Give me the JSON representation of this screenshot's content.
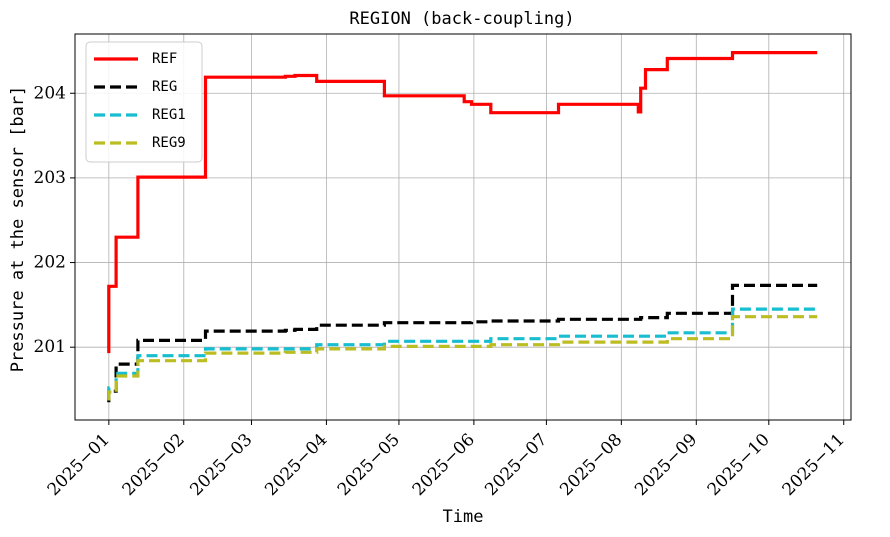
{
  "chart_data": {
    "type": "line",
    "title": "REGION (back-coupling)",
    "xlabel": "Time",
    "ylabel": "Pressure at the sensor [bar]",
    "x_ticks": [
      "2025-01",
      "2025-02",
      "2025-03",
      "2025-04",
      "2025-05",
      "2025-06",
      "2025-07",
      "2025-08",
      "2025-09",
      "2025-10",
      "2025-11"
    ],
    "y_ticks": [
      "201",
      "202",
      "203",
      "204"
    ],
    "xlim": [
      "2024-12-18",
      "2025-11-04"
    ],
    "ylim": [
      200.14,
      204.7
    ],
    "grid": true,
    "legend_position": "top-left",
    "series": [
      {
        "name": "REF",
        "color": "#ff0000",
        "style": "solid",
        "points": [
          [
            "2025-01-01",
            200.93
          ],
          [
            "2025-01-01",
            201.72
          ],
          [
            "2025-01-04",
            201.72
          ],
          [
            "2025-01-04",
            202.3
          ],
          [
            "2025-01-13",
            202.3
          ],
          [
            "2025-01-13",
            203.01
          ],
          [
            "2025-02-10",
            203.01
          ],
          [
            "2025-02-10",
            204.19
          ],
          [
            "2025-03-15",
            204.19
          ],
          [
            "2025-03-15",
            204.2
          ],
          [
            "2025-03-19",
            204.2
          ],
          [
            "2025-03-19",
            204.21
          ],
          [
            "2025-03-28",
            204.21
          ],
          [
            "2025-03-28",
            204.14
          ],
          [
            "2025-04-25",
            204.14
          ],
          [
            "2025-04-25",
            203.97
          ],
          [
            "2025-05-28",
            203.97
          ],
          [
            "2025-05-28",
            203.9
          ],
          [
            "2025-05-31",
            203.9
          ],
          [
            "2025-05-31",
            203.87
          ],
          [
            "2025-06-08",
            203.87
          ],
          [
            "2025-06-08",
            203.77
          ],
          [
            "2025-07-06",
            203.77
          ],
          [
            "2025-07-06",
            203.87
          ],
          [
            "2025-08-08",
            203.87
          ],
          [
            "2025-08-08",
            203.78
          ],
          [
            "2025-08-09",
            203.78
          ],
          [
            "2025-08-09",
            204.06
          ],
          [
            "2025-08-11",
            204.06
          ],
          [
            "2025-08-11",
            204.28
          ],
          [
            "2025-08-20",
            204.28
          ],
          [
            "2025-08-20",
            204.41
          ],
          [
            "2025-09-16",
            204.41
          ],
          [
            "2025-09-16",
            204.48
          ],
          [
            "2025-10-21",
            204.48
          ]
        ]
      },
      {
        "name": "REG",
        "color": "#000000",
        "style": "dashed",
        "points": [
          [
            "2025-01-01",
            200.35
          ],
          [
            "2025-01-01",
            200.48
          ],
          [
            "2025-01-04",
            200.48
          ],
          [
            "2025-01-04",
            200.8
          ],
          [
            "2025-01-13",
            200.8
          ],
          [
            "2025-01-13",
            201.08
          ],
          [
            "2025-02-10",
            201.08
          ],
          [
            "2025-02-10",
            201.19
          ],
          [
            "2025-03-15",
            201.19
          ],
          [
            "2025-03-15",
            201.2
          ],
          [
            "2025-03-19",
            201.2
          ],
          [
            "2025-03-19",
            201.21
          ],
          [
            "2025-03-28",
            201.21
          ],
          [
            "2025-03-28",
            201.26
          ],
          [
            "2025-04-25",
            201.26
          ],
          [
            "2025-04-25",
            201.29
          ],
          [
            "2025-05-31",
            201.29
          ],
          [
            "2025-05-31",
            201.3
          ],
          [
            "2025-06-08",
            201.3
          ],
          [
            "2025-06-08",
            201.31
          ],
          [
            "2025-07-06",
            201.31
          ],
          [
            "2025-07-06",
            201.33
          ],
          [
            "2025-08-09",
            201.33
          ],
          [
            "2025-08-09",
            201.35
          ],
          [
            "2025-08-20",
            201.35
          ],
          [
            "2025-08-20",
            201.4
          ],
          [
            "2025-09-16",
            201.4
          ],
          [
            "2025-09-16",
            201.73
          ],
          [
            "2025-10-21",
            201.73
          ]
        ]
      },
      {
        "name": "REG1",
        "color": "#17becf",
        "style": "dashed",
        "points": [
          [
            "2025-01-01",
            200.4
          ],
          [
            "2025-01-01",
            200.52
          ],
          [
            "2025-01-04",
            200.52
          ],
          [
            "2025-01-04",
            200.69
          ],
          [
            "2025-01-13",
            200.69
          ],
          [
            "2025-01-13",
            200.9
          ],
          [
            "2025-02-10",
            200.9
          ],
          [
            "2025-02-10",
            200.98
          ],
          [
            "2025-03-28",
            200.98
          ],
          [
            "2025-03-28",
            201.03
          ],
          [
            "2025-04-25",
            201.03
          ],
          [
            "2025-04-25",
            201.07
          ],
          [
            "2025-06-08",
            201.07
          ],
          [
            "2025-06-08",
            201.1
          ],
          [
            "2025-07-06",
            201.1
          ],
          [
            "2025-07-06",
            201.13
          ],
          [
            "2025-08-20",
            201.13
          ],
          [
            "2025-08-20",
            201.17
          ],
          [
            "2025-09-16",
            201.17
          ],
          [
            "2025-09-16",
            201.45
          ],
          [
            "2025-10-21",
            201.45
          ]
        ]
      },
      {
        "name": "REG9",
        "color": "#bcbd22",
        "style": "dashed",
        "points": [
          [
            "2025-01-01",
            200.37
          ],
          [
            "2025-01-01",
            200.47
          ],
          [
            "2025-01-04",
            200.47
          ],
          [
            "2025-01-04",
            200.66
          ],
          [
            "2025-01-13",
            200.66
          ],
          [
            "2025-01-13",
            200.84
          ],
          [
            "2025-02-10",
            200.84
          ],
          [
            "2025-02-10",
            200.93
          ],
          [
            "2025-03-15",
            200.93
          ],
          [
            "2025-03-15",
            200.94
          ],
          [
            "2025-03-28",
            200.94
          ],
          [
            "2025-03-28",
            200.98
          ],
          [
            "2025-04-25",
            200.98
          ],
          [
            "2025-04-25",
            201.01
          ],
          [
            "2025-06-08",
            201.01
          ],
          [
            "2025-06-08",
            201.03
          ],
          [
            "2025-07-06",
            201.03
          ],
          [
            "2025-07-06",
            201.06
          ],
          [
            "2025-08-20",
            201.06
          ],
          [
            "2025-08-20",
            201.1
          ],
          [
            "2025-09-16",
            201.1
          ],
          [
            "2025-09-16",
            201.36
          ],
          [
            "2025-10-21",
            201.36
          ]
        ]
      }
    ]
  }
}
